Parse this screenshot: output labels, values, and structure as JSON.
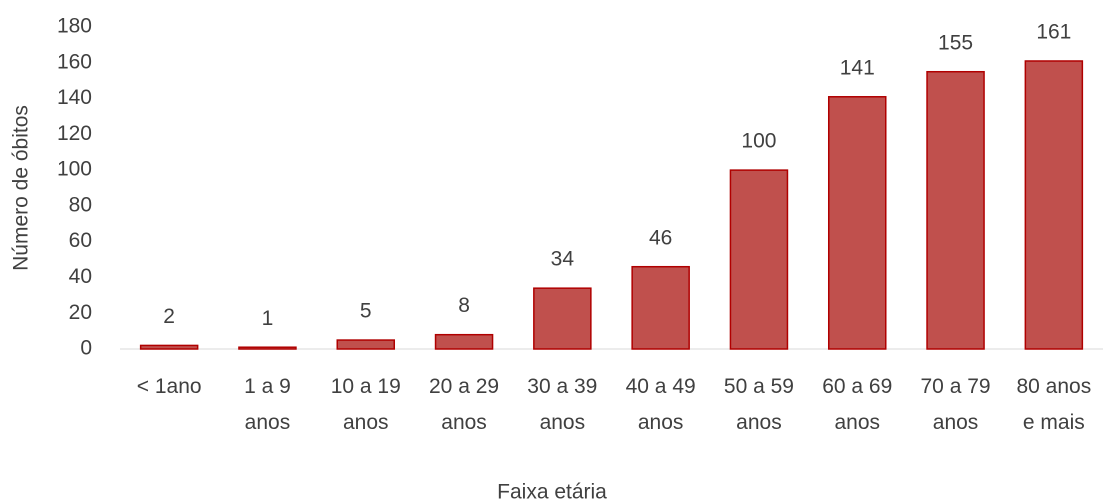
{
  "chart_data": {
    "type": "bar",
    "xlabel": "Faixa etária",
    "ylabel": "Número de óbitos",
    "categories": [
      "< 1ano",
      "1 a 9\nanos",
      "10 a 19\nanos",
      "20 a 29\nanos",
      "30 a 39\nanos",
      "40 a 49\nanos",
      "50 a 59\nanos",
      "60 a 69\nanos",
      "70 a 79\nanos",
      "80 anos\ne mais"
    ],
    "values": [
      2,
      1,
      5,
      8,
      34,
      46,
      100,
      141,
      155,
      161
    ],
    "color": "#c0504d",
    "ylim": [
      0,
      180
    ],
    "yticks": [
      0,
      20,
      40,
      60,
      80,
      100,
      120,
      140,
      160,
      180
    ],
    "grid": false
  }
}
